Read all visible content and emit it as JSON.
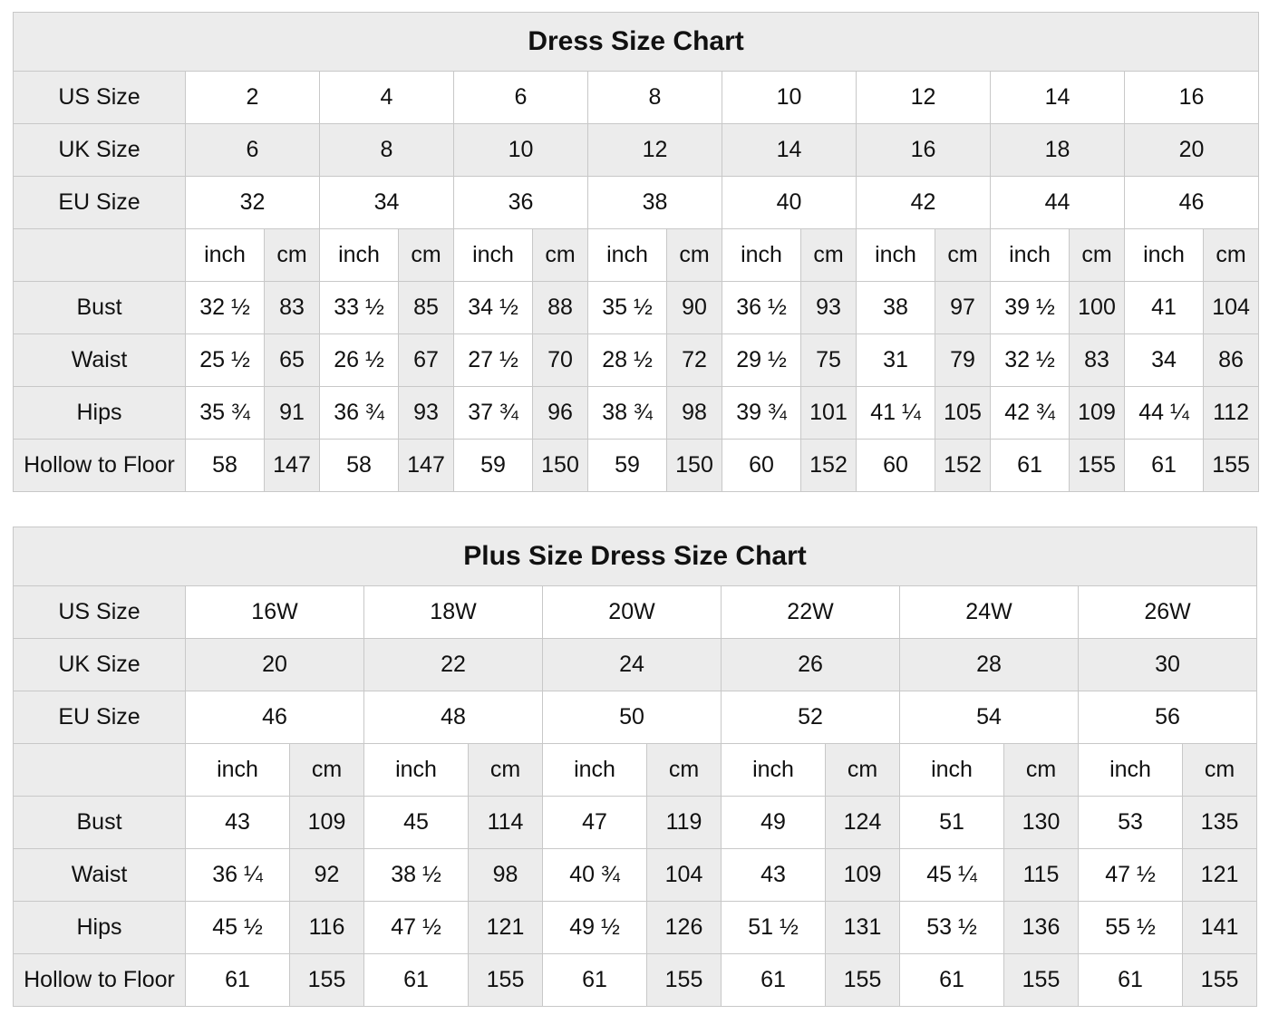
{
  "colors": {
    "shaded_cell": "#ececec",
    "plain_cell": "#ffffff",
    "border": "#c8c8c8",
    "text": "#111111"
  },
  "chart_data": [
    {
      "type": "table",
      "title": "Dress Size Chart",
      "unit_labels": [
        "inch",
        "cm"
      ],
      "size_rows": [
        {
          "label": "US Size",
          "shaded": false,
          "values": [
            "2",
            "4",
            "6",
            "8",
            "10",
            "12",
            "14",
            "16"
          ]
        },
        {
          "label": "UK Size",
          "shaded": true,
          "values": [
            "6",
            "8",
            "10",
            "12",
            "14",
            "16",
            "18",
            "20"
          ]
        },
        {
          "label": "EU Size",
          "shaded": false,
          "values": [
            "32",
            "34",
            "36",
            "38",
            "40",
            "42",
            "44",
            "46"
          ]
        }
      ],
      "measure_rows": [
        {
          "label": "Bust",
          "inch": [
            "32 ½",
            "33 ½",
            "34 ½",
            "35 ½",
            "36 ½",
            "38",
            "39 ½",
            "41"
          ],
          "cm": [
            "83",
            "85",
            "88",
            "90",
            "93",
            "97",
            "100",
            "104"
          ]
        },
        {
          "label": "Waist",
          "inch": [
            "25 ½",
            "26 ½",
            "27 ½",
            "28 ½",
            "29 ½",
            "31",
            "32 ½",
            "34"
          ],
          "cm": [
            "65",
            "67",
            "70",
            "72",
            "75",
            "79",
            "83",
            "86"
          ]
        },
        {
          "label": "Hips",
          "inch": [
            "35 ¾",
            "36 ¾",
            "37 ¾",
            "38 ¾",
            "39 ¾",
            "41 ¼",
            "42 ¾",
            "44 ¼"
          ],
          "cm": [
            "91",
            "93",
            "96",
            "98",
            "101",
            "105",
            "109",
            "112"
          ]
        },
        {
          "label": "Hollow to Floor",
          "inch": [
            "58",
            "58",
            "59",
            "59",
            "60",
            "60",
            "61",
            "61"
          ],
          "cm": [
            "147",
            "147",
            "150",
            "150",
            "152",
            "152",
            "155",
            "155"
          ]
        }
      ]
    },
    {
      "type": "table",
      "title": "Plus Size Dress Size Chart",
      "unit_labels": [
        "inch",
        "cm"
      ],
      "size_rows": [
        {
          "label": "US Size",
          "shaded": false,
          "values": [
            "16W",
            "18W",
            "20W",
            "22W",
            "24W",
            "26W"
          ]
        },
        {
          "label": "UK Size",
          "shaded": true,
          "values": [
            "20",
            "22",
            "24",
            "26",
            "28",
            "30"
          ]
        },
        {
          "label": "EU Size",
          "shaded": false,
          "values": [
            "46",
            "48",
            "50",
            "52",
            "54",
            "56"
          ]
        }
      ],
      "measure_rows": [
        {
          "label": "Bust",
          "inch": [
            "43",
            "45",
            "47",
            "49",
            "51",
            "53"
          ],
          "cm": [
            "109",
            "114",
            "119",
            "124",
            "130",
            "135"
          ]
        },
        {
          "label": "Waist",
          "inch": [
            "36 ¼",
            "38 ½",
            "40 ¾",
            "43",
            "45 ¼",
            "47 ½"
          ],
          "cm": [
            "92",
            "98",
            "104",
            "109",
            "115",
            "121"
          ]
        },
        {
          "label": "Hips",
          "inch": [
            "45 ½",
            "47 ½",
            "49 ½",
            "51 ½",
            "53 ½",
            "55 ½"
          ],
          "cm": [
            "116",
            "121",
            "126",
            "131",
            "136",
            "141"
          ]
        },
        {
          "label": "Hollow to Floor",
          "inch": [
            "61",
            "61",
            "61",
            "61",
            "61",
            "61"
          ],
          "cm": [
            "155",
            "155",
            "155",
            "155",
            "155",
            "155"
          ]
        }
      ]
    }
  ]
}
